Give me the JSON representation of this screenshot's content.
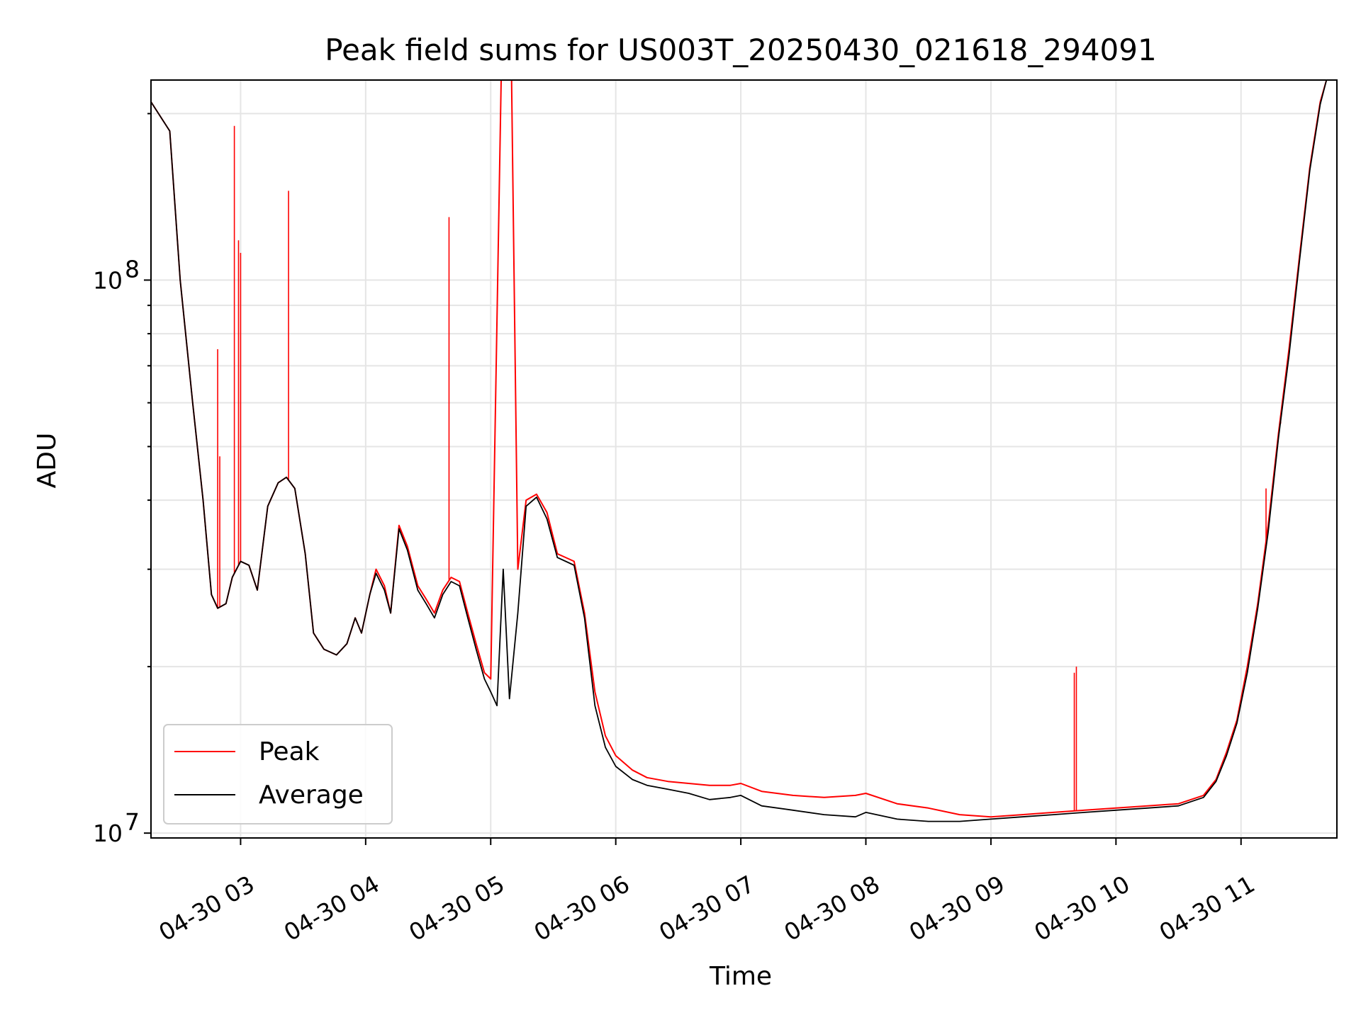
{
  "chart_data": {
    "type": "line",
    "title": "Peak field sums for US003T_20250430_021618_294091",
    "xlabel": "Time",
    "ylabel": "ADU",
    "x_ticks": [
      "04-30 03",
      "04-30 04",
      "04-30 05",
      "04-30 06",
      "04-30 07",
      "04-30 08",
      "04-30 09",
      "04-30 10",
      "04-30 11"
    ],
    "y_ticks": [
      {
        "base": "10",
        "exp": "7"
      },
      {
        "base": "10",
        "exp": "8"
      }
    ],
    "xlim": [
      "2025-04-30 02:17",
      "2025-04-30 11:46"
    ],
    "ylim": [
      9800000,
      230000000
    ],
    "y_scale": "log",
    "grid": true,
    "legend_position": "lower-left",
    "series": [
      {
        "name": "Peak",
        "color": "#ff0000",
        "points": [
          [
            "2025-04-30 02:17",
            210000000
          ],
          [
            "2025-04-30 02:26",
            186000000
          ],
          [
            "2025-04-30 02:31",
            100000000
          ],
          [
            "2025-04-30 02:37",
            60000000
          ],
          [
            "2025-04-30 02:42",
            40000000
          ],
          [
            "2025-04-30 02:46",
            27000000
          ],
          [
            "2025-04-30 02:49",
            25500000
          ],
          [
            "2025-04-30 02:53",
            26000000
          ],
          [
            "2025-04-30 02:56",
            29000000
          ],
          [
            "2025-04-30 03:00",
            31000000
          ],
          [
            "2025-04-30 03:04",
            30500000
          ],
          [
            "2025-04-30 03:08",
            27500000
          ],
          [
            "2025-04-30 03:13",
            39000000
          ],
          [
            "2025-04-30 03:18",
            43000000
          ],
          [
            "2025-04-30 03:22",
            44000000
          ],
          [
            "2025-04-30 03:26",
            42000000
          ],
          [
            "2025-04-30 03:31",
            32000000
          ],
          [
            "2025-04-30 03:35",
            23000000
          ],
          [
            "2025-04-30 03:40",
            21500000
          ],
          [
            "2025-04-30 03:46",
            21000000
          ],
          [
            "2025-04-30 03:51",
            22000000
          ],
          [
            "2025-04-30 03:55",
            24500000
          ],
          [
            "2025-04-30 03:58",
            23000000
          ],
          [
            "2025-04-30 04:02",
            27000000
          ],
          [
            "2025-04-30 04:05",
            30000000
          ],
          [
            "2025-04-30 04:09",
            28000000
          ],
          [
            "2025-04-30 04:12",
            25000000
          ],
          [
            "2025-04-30 04:16",
            36000000
          ],
          [
            "2025-04-30 04:20",
            33000000
          ],
          [
            "2025-04-30 04:25",
            28000000
          ],
          [
            "2025-04-30 04:29",
            26500000
          ],
          [
            "2025-04-30 04:33",
            25000000
          ],
          [
            "2025-04-30 04:37",
            27500000
          ],
          [
            "2025-04-30 04:41",
            29000000
          ],
          [
            "2025-04-30 04:45",
            28500000
          ],
          [
            "2025-04-30 04:49",
            25000000
          ],
          [
            "2025-04-30 04:53",
            22000000
          ],
          [
            "2025-04-30 04:57",
            19500000
          ],
          [
            "2025-04-30 05:00",
            19000000
          ],
          [
            "2025-04-30 05:05",
            230000000
          ],
          [
            "2025-04-30 05:10",
            230000000
          ],
          [
            "2025-04-30 05:13",
            30000000
          ],
          [
            "2025-04-30 05:17",
            40000000
          ],
          [
            "2025-04-30 05:22",
            41000000
          ],
          [
            "2025-04-30 05:27",
            38000000
          ],
          [
            "2025-04-30 05:32",
            32000000
          ],
          [
            "2025-04-30 05:36",
            31500000
          ],
          [
            "2025-04-30 05:40",
            31000000
          ],
          [
            "2025-04-30 05:45",
            25000000
          ],
          [
            "2025-04-30 05:50",
            18000000
          ],
          [
            "2025-04-30 05:55",
            15000000
          ],
          [
            "2025-04-30 06:00",
            13800000
          ],
          [
            "2025-04-30 06:08",
            13000000
          ],
          [
            "2025-04-30 06:15",
            12600000
          ],
          [
            "2025-04-30 06:25",
            12400000
          ],
          [
            "2025-04-30 06:35",
            12300000
          ],
          [
            "2025-04-30 06:45",
            12200000
          ],
          [
            "2025-04-30 06:55",
            12200000
          ],
          [
            "2025-04-30 07:00",
            12300000
          ],
          [
            "2025-04-30 07:10",
            11900000
          ],
          [
            "2025-04-30 07:25",
            11700000
          ],
          [
            "2025-04-30 07:40",
            11600000
          ],
          [
            "2025-04-30 07:55",
            11700000
          ],
          [
            "2025-04-30 08:00",
            11800000
          ],
          [
            "2025-04-30 08:15",
            11300000
          ],
          [
            "2025-04-30 08:30",
            11100000
          ],
          [
            "2025-04-30 08:45",
            10800000
          ],
          [
            "2025-04-30 09:00",
            10700000
          ],
          [
            "2025-04-30 09:15",
            10800000
          ],
          [
            "2025-04-30 09:30",
            10900000
          ],
          [
            "2025-04-30 09:45",
            11000000
          ],
          [
            "2025-04-30 10:00",
            11100000
          ],
          [
            "2025-04-30 10:15",
            11200000
          ],
          [
            "2025-04-30 10:30",
            11300000
          ],
          [
            "2025-04-30 10:42",
            11700000
          ],
          [
            "2025-04-30 10:48",
            12500000
          ],
          [
            "2025-04-30 10:53",
            14000000
          ],
          [
            "2025-04-30 10:58",
            16000000
          ],
          [
            "2025-04-30 11:03",
            20000000
          ],
          [
            "2025-04-30 11:08",
            26000000
          ],
          [
            "2025-04-30 11:13",
            36000000
          ],
          [
            "2025-04-30 11:18",
            53000000
          ],
          [
            "2025-04-30 11:23",
            75000000
          ],
          [
            "2025-04-30 11:28",
            110000000
          ],
          [
            "2025-04-30 11:33",
            160000000
          ],
          [
            "2025-04-30 11:38",
            210000000
          ],
          [
            "2025-04-30 11:41",
            230000000
          ]
        ],
        "spikes": [
          [
            "2025-04-30 02:49",
            75000000
          ],
          [
            "2025-04-30 02:50",
            48000000
          ],
          [
            "2025-04-30 02:57",
            190000000
          ],
          [
            "2025-04-30 02:59",
            118000000
          ],
          [
            "2025-04-30 03:00",
            112000000
          ],
          [
            "2025-04-30 03:23",
            145000000
          ],
          [
            "2025-04-30 04:40",
            130000000
          ],
          [
            "2025-04-30 09:40",
            19500000
          ],
          [
            "2025-04-30 09:41",
            20000000
          ],
          [
            "2025-04-30 11:12",
            42000000
          ],
          [
            "2025-04-30 11:19",
            55000000
          ],
          [
            "2025-04-30 11:22",
            68000000
          ]
        ]
      },
      {
        "name": "Average",
        "color": "#000000",
        "points": [
          [
            "2025-04-30 02:17",
            210000000
          ],
          [
            "2025-04-30 02:26",
            186000000
          ],
          [
            "2025-04-30 02:31",
            100000000
          ],
          [
            "2025-04-30 02:37",
            60000000
          ],
          [
            "2025-04-30 02:42",
            40000000
          ],
          [
            "2025-04-30 02:46",
            27000000
          ],
          [
            "2025-04-30 02:49",
            25500000
          ],
          [
            "2025-04-30 02:53",
            26000000
          ],
          [
            "2025-04-30 02:56",
            29000000
          ],
          [
            "2025-04-30 03:00",
            31000000
          ],
          [
            "2025-04-30 03:04",
            30500000
          ],
          [
            "2025-04-30 03:08",
            27500000
          ],
          [
            "2025-04-30 03:13",
            39000000
          ],
          [
            "2025-04-30 03:18",
            43000000
          ],
          [
            "2025-04-30 03:22",
            44000000
          ],
          [
            "2025-04-30 03:26",
            42000000
          ],
          [
            "2025-04-30 03:31",
            32000000
          ],
          [
            "2025-04-30 03:35",
            23000000
          ],
          [
            "2025-04-30 03:40",
            21500000
          ],
          [
            "2025-04-30 03:46",
            21000000
          ],
          [
            "2025-04-30 03:51",
            22000000
          ],
          [
            "2025-04-30 03:55",
            24500000
          ],
          [
            "2025-04-30 03:58",
            23000000
          ],
          [
            "2025-04-30 04:02",
            27000000
          ],
          [
            "2025-04-30 04:05",
            29500000
          ],
          [
            "2025-04-30 04:09",
            27500000
          ],
          [
            "2025-04-30 04:12",
            25000000
          ],
          [
            "2025-04-30 04:16",
            35500000
          ],
          [
            "2025-04-30 04:20",
            32500000
          ],
          [
            "2025-04-30 04:25",
            27500000
          ],
          [
            "2025-04-30 04:29",
            26000000
          ],
          [
            "2025-04-30 04:33",
            24500000
          ],
          [
            "2025-04-30 04:37",
            27000000
          ],
          [
            "2025-04-30 04:41",
            28500000
          ],
          [
            "2025-04-30 04:45",
            28000000
          ],
          [
            "2025-04-30 04:49",
            24500000
          ],
          [
            "2025-04-30 04:53",
            21500000
          ],
          [
            "2025-04-30 04:57",
            19000000
          ],
          [
            "2025-04-30 05:00",
            18000000
          ],
          [
            "2025-04-30 05:03",
            17000000
          ],
          [
            "2025-04-30 05:06",
            30000000
          ],
          [
            "2025-04-30 05:09",
            17500000
          ],
          [
            "2025-04-30 05:13",
            25000000
          ],
          [
            "2025-04-30 05:17",
            39000000
          ],
          [
            "2025-04-30 05:22",
            40500000
          ],
          [
            "2025-04-30 05:27",
            37000000
          ],
          [
            "2025-04-30 05:32",
            31500000
          ],
          [
            "2025-04-30 05:36",
            31000000
          ],
          [
            "2025-04-30 05:40",
            30500000
          ],
          [
            "2025-04-30 05:45",
            24500000
          ],
          [
            "2025-04-30 05:50",
            17000000
          ],
          [
            "2025-04-30 05:55",
            14300000
          ],
          [
            "2025-04-30 06:00",
            13200000
          ],
          [
            "2025-04-30 06:08",
            12500000
          ],
          [
            "2025-04-30 06:15",
            12200000
          ],
          [
            "2025-04-30 06:25",
            12000000
          ],
          [
            "2025-04-30 06:35",
            11800000
          ],
          [
            "2025-04-30 06:45",
            11500000
          ],
          [
            "2025-04-30 06:55",
            11600000
          ],
          [
            "2025-04-30 07:00",
            11700000
          ],
          [
            "2025-04-30 07:10",
            11200000
          ],
          [
            "2025-04-30 07:25",
            11000000
          ],
          [
            "2025-04-30 07:40",
            10800000
          ],
          [
            "2025-04-30 07:55",
            10700000
          ],
          [
            "2025-04-30 08:00",
            10900000
          ],
          [
            "2025-04-30 08:15",
            10600000
          ],
          [
            "2025-04-30 08:30",
            10500000
          ],
          [
            "2025-04-30 08:45",
            10500000
          ],
          [
            "2025-04-30 09:00",
            10600000
          ],
          [
            "2025-04-30 09:15",
            10700000
          ],
          [
            "2025-04-30 09:30",
            10800000
          ],
          [
            "2025-04-30 09:45",
            10900000
          ],
          [
            "2025-04-30 10:00",
            11000000
          ],
          [
            "2025-04-30 10:15",
            11100000
          ],
          [
            "2025-04-30 10:30",
            11200000
          ],
          [
            "2025-04-30 10:42",
            11600000
          ],
          [
            "2025-04-30 10:48",
            12400000
          ],
          [
            "2025-04-30 10:53",
            13800000
          ],
          [
            "2025-04-30 10:58",
            15800000
          ],
          [
            "2025-04-30 11:03",
            19500000
          ],
          [
            "2025-04-30 11:08",
            25500000
          ],
          [
            "2025-04-30 11:13",
            35000000
          ],
          [
            "2025-04-30 11:18",
            52000000
          ],
          [
            "2025-04-30 11:23",
            73000000
          ],
          [
            "2025-04-30 11:28",
            108000000
          ],
          [
            "2025-04-30 11:33",
            158000000
          ],
          [
            "2025-04-30 11:38",
            208000000
          ],
          [
            "2025-04-30 11:41",
            230000000
          ]
        ]
      }
    ]
  }
}
